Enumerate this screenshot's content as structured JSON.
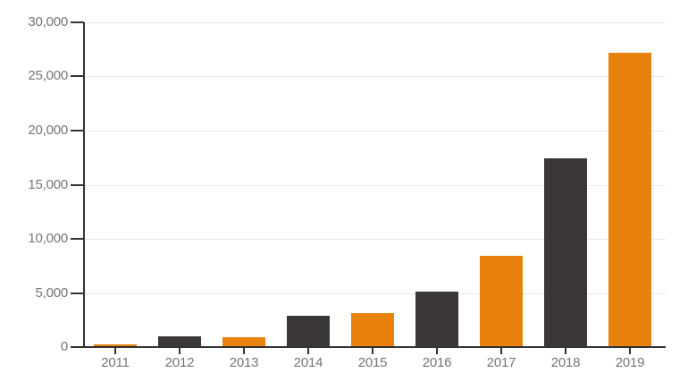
{
  "chart_data": {
    "type": "bar",
    "title": "",
    "xlabel": "",
    "ylabel": "",
    "categories": [
      "2011",
      "2012",
      "2013",
      "2014",
      "2015",
      "2016",
      "2017",
      "2018",
      "2019"
    ],
    "values": [
      150,
      1000,
      900,
      2900,
      3100,
      5100,
      8400,
      17400,
      27200
    ],
    "bar_colors": [
      "#E8820C",
      "#3B3737",
      "#E8820C",
      "#3B3737",
      "#E8820C",
      "#3B3737",
      "#E8820C",
      "#3B3737",
      "#E8820C"
    ],
    "ylim": [
      0,
      30000
    ],
    "ytick_step": 5000,
    "ytick_labels": [
      "0",
      "5,000",
      "10,000",
      "15,000",
      "20,000",
      "25,000",
      "30,000"
    ],
    "grid": true,
    "legend": "none",
    "colors": {
      "bar_orange": "#E8820C",
      "bar_dark": "#3B3737",
      "axis": "#333333",
      "gridline": "#E9E9E9",
      "tick_label": "#757575",
      "background": "#FFFFFF"
    }
  }
}
